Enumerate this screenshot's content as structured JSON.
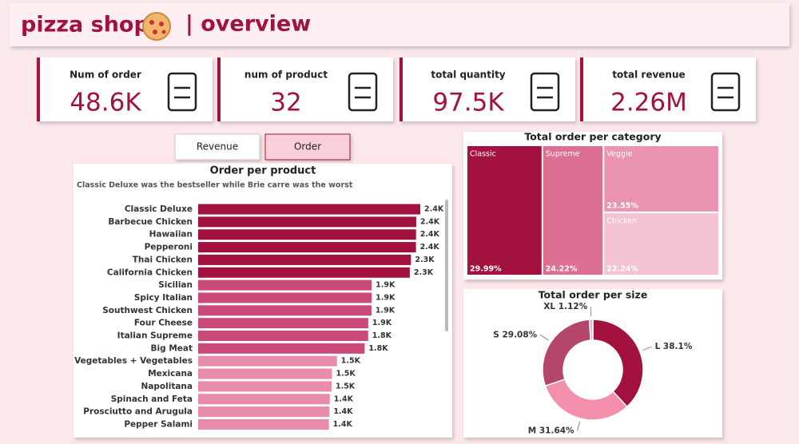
{
  "header": {
    "title": "pizza shop",
    "subtitle": "| overview"
  },
  "kpis": [
    {
      "label": "Num of order",
      "value": "48.6K"
    },
    {
      "label": "num of product",
      "value": "32"
    },
    {
      "label": "total quantity",
      "value": "97.5K"
    },
    {
      "label": "total revenue",
      "value": "2.26M"
    }
  ],
  "buttons": [
    "Revenue",
    "Order"
  ],
  "chart_data": [
    {
      "type": "bar",
      "title": "Order per product",
      "subtitle": "Classic Deluxe was the bestseller while Brie carre was the worst",
      "categories": [
        "Classic Deluxe",
        "Barbecue Chicken",
        "Hawaiian",
        "Pepperoni",
        "Thai Chicken",
        "California Chicken",
        "Sicilian",
        "Spicy Italian",
        "Southwest Chicken",
        "Four Cheese",
        "Italian Supreme",
        "Big Meat",
        "Vegetables + Vegetables",
        "Mexicana",
        "Napolitana",
        "Spinach and Feta",
        "Prosciutto and Arugula",
        "Pepper Salami"
      ],
      "values": [
        2416,
        2372,
        2370,
        2369,
        2315,
        2302,
        1887,
        1887,
        1885,
        1850,
        1849,
        1811,
        1510,
        1456,
        1451,
        1432,
        1428,
        1422
      ],
      "value_labels": [
        "2.4K",
        "2.4K",
        "2.4K",
        "2.4K",
        "2.3K",
        "2.3K",
        "1.9K",
        "1.9K",
        "1.9K",
        "1.9K",
        "1.8K",
        "1.8K",
        "1.5K",
        "1.5K",
        "1.5K",
        "1.4K",
        "1.4K",
        "1.4K"
      ],
      "colors": [
        "#a3123f",
        "#a3123f",
        "#a3123f",
        "#a3123f",
        "#a3123f",
        "#a3123f",
        "#c94a78",
        "#c94a78",
        "#c94a78",
        "#c94a78",
        "#c94a78",
        "#c94a78",
        "#e98bab",
        "#e98bab",
        "#e98bab",
        "#e98bab",
        "#e98bab",
        "#e98bab"
      ]
    },
    {
      "type": "treemap",
      "title": "Total order per category",
      "categories": [
        "Classic",
        "Supreme",
        "Veggie",
        "Chicken"
      ],
      "values": [
        29.99,
        24.22,
        23.55,
        22.24
      ],
      "value_labels": [
        "29.99%",
        "24.22%",
        "23.55%",
        "22.24%"
      ],
      "colors": [
        "#a3123f",
        "#dd6f92",
        "#eb94b0",
        "#f3c3d2"
      ]
    },
    {
      "type": "donut",
      "title": "Total order per size",
      "categories": [
        "L",
        "M",
        "S",
        "XL"
      ],
      "values": [
        38.1,
        31.64,
        29.08,
        1.12
      ],
      "value_labels": [
        "38.1%",
        "31.64%",
        "29.08%",
        "1.12%"
      ],
      "colors": [
        "#a3123f",
        "#f48fab",
        "#b5466b",
        "#e3b7c6"
      ]
    }
  ]
}
